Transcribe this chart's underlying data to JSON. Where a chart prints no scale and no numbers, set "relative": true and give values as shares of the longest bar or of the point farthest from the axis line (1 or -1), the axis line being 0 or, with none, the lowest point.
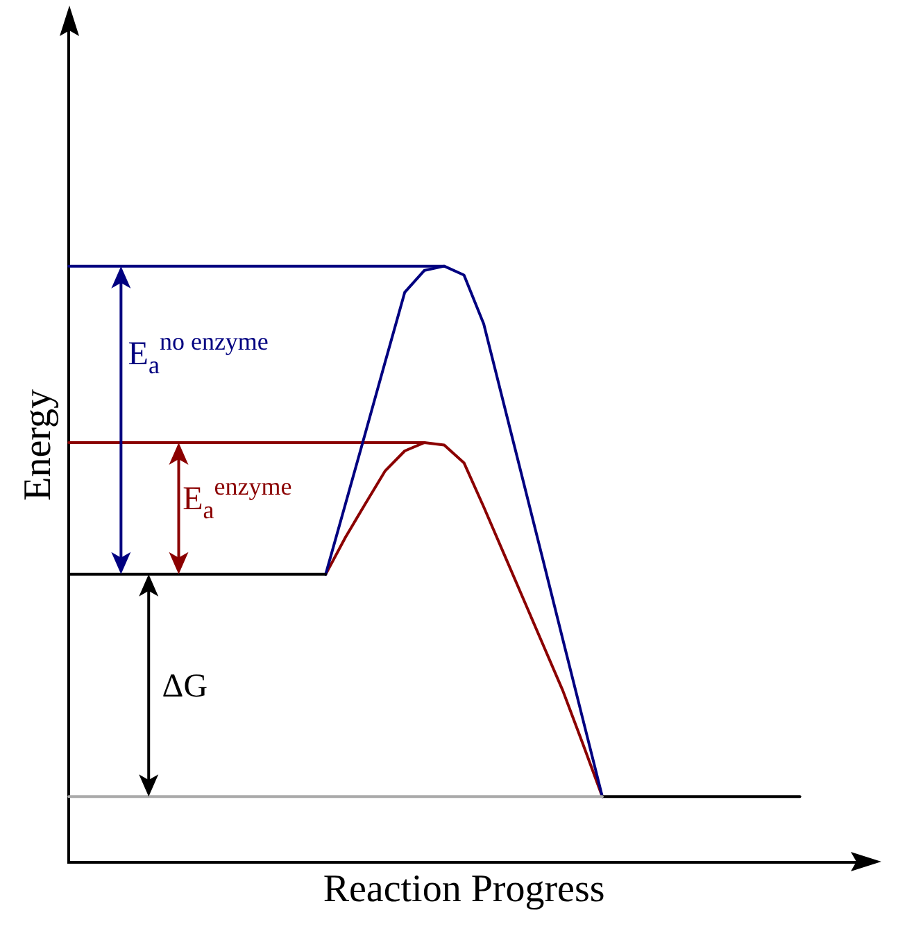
{
  "chart_data": {
    "type": "line",
    "xlabel": "Reaction Progress",
    "ylabel": "Energy",
    "relative": true,
    "tick_labels": false,
    "grid": false,
    "legend": false,
    "marker": "none",
    "line_style": "solid",
    "categories": [
      null,
      null,
      null,
      null,
      null,
      null,
      null,
      null,
      null,
      null,
      null,
      null,
      null,
      null,
      null,
      null,
      null,
      null,
      null,
      null,
      null,
      null,
      null,
      null,
      null,
      null,
      null,
      null,
      null,
      null,
      null,
      null,
      null,
      null,
      null,
      null,
      null,
      null,
      null,
      null,
      null
    ],
    "series": [
      {
        "color": "#aaaaaa",
        "values": [
          0.11,
          0.11,
          0.11,
          0.11,
          0.11,
          0.11,
          0.11,
          0.11,
          0.11,
          0.11,
          0.11,
          0.11,
          0.11,
          0.11,
          0.11,
          0.11,
          0.11,
          0.11,
          0.11,
          0.11,
          0.11,
          0.11,
          0.11,
          0.11,
          0.11,
          0.11,
          0.11,
          0.11,
          null,
          null,
          null,
          null,
          null,
          null,
          null,
          null,
          null,
          null,
          null,
          null,
          null
        ]
      },
      {
        "color": "#000000",
        "values": [
          0.483,
          0.483,
          0.483,
          0.483,
          0.483,
          0.483,
          0.483,
          0.483,
          0.483,
          0.483,
          0.483,
          0.483,
          0.483,
          0.483,
          null,
          null,
          null,
          null,
          null,
          null,
          null,
          null,
          null,
          null,
          null,
          null,
          null,
          null,
          null,
          null,
          null,
          null,
          null,
          null,
          null,
          null,
          null,
          null,
          null,
          null,
          null
        ]
      },
      {
        "color": "#000000",
        "values": [
          null,
          null,
          null,
          null,
          null,
          null,
          null,
          null,
          null,
          null,
          null,
          null,
          null,
          null,
          null,
          null,
          null,
          null,
          null,
          null,
          null,
          null,
          null,
          null,
          null,
          null,
          null,
          0.11,
          0.11,
          0.11,
          0.11,
          0.11,
          0.11,
          0.11,
          0.11,
          0.11,
          0.11,
          0.11,
          null,
          null,
          null
        ]
      },
      {
        "color": "#000080",
        "values": [
          1,
          1,
          1,
          1,
          1,
          1,
          1,
          1,
          1,
          1,
          1,
          1,
          1,
          1,
          1,
          1,
          1,
          1,
          1,
          1,
          null,
          null,
          null,
          null,
          null,
          null,
          null,
          null,
          null,
          null,
          null,
          null,
          null,
          null,
          null,
          null,
          null,
          null,
          null,
          null,
          null
        ]
      },
      {
        "color": "#000080",
        "values": [
          null,
          null,
          null,
          null,
          null,
          null,
          null,
          null,
          null,
          null,
          null,
          null,
          null,
          0.483,
          0.601,
          0.719,
          0.838,
          0.956,
          0.993,
          1,
          0.985,
          0.903,
          0.771,
          0.639,
          0.507,
          0.374,
          0.242,
          0.11,
          null,
          null,
          null,
          null,
          null,
          null,
          null,
          null,
          null,
          null,
          null,
          null,
          null
        ]
      },
      {
        "color": "#8b0000",
        "values": [
          0.704,
          0.704,
          0.704,
          0.704,
          0.704,
          0.704,
          0.704,
          0.704,
          0.704,
          0.704,
          0.704,
          0.704,
          0.704,
          0.704,
          0.704,
          0.704,
          0.704,
          0.704,
          0.704,
          null,
          null,
          null,
          null,
          null,
          null,
          null,
          null,
          null,
          null,
          null,
          null,
          null,
          null,
          null,
          null,
          null,
          null,
          null,
          null,
          null,
          null
        ]
      },
      {
        "color": "#8b0000",
        "values": [
          null,
          null,
          null,
          null,
          null,
          null,
          null,
          null,
          null,
          null,
          null,
          null,
          null,
          0.483,
          0.545,
          0.601,
          0.656,
          0.69,
          0.704,
          0.7,
          0.67,
          0.596,
          0.519,
          0.442,
          0.365,
          0.288,
          0.2,
          0.11,
          null,
          null,
          null,
          null,
          null,
          null,
          null,
          null,
          null,
          null,
          null,
          null,
          null
        ]
      }
    ],
    "annotations": [
      "E$_{a}$$^{no enzyme}$",
      "E$_{a}$$^{enzyme}$",
      "ΔG"
    ]
  }
}
